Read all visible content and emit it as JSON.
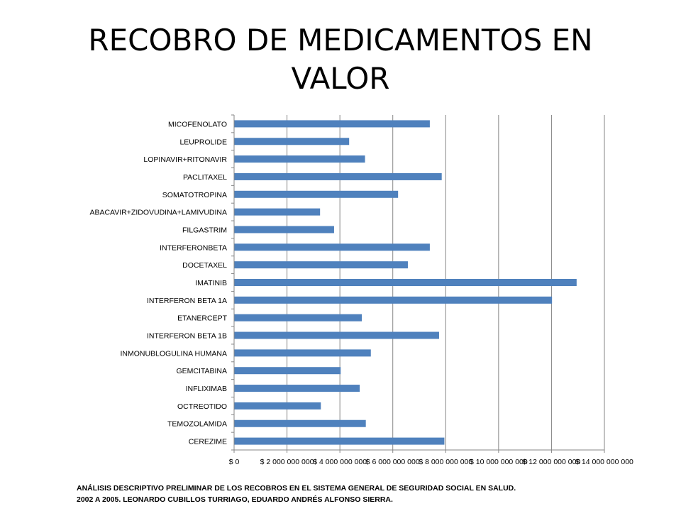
{
  "title": "RECOBRO DE MEDICAMENTOS EN VALOR",
  "footnote": {
    "line1": "ANÁLISIS DESCRIPTIVO PRELIMINAR DE LOS RECOBROS EN EL SISTEMA GENERAL DE SEGURIDAD SOCIAL EN SALUD.",
    "line2": "2002 A 2005. LEONARDO CUBILLOS TURRIAGO, EDUARDO ANDRÉS ALFONSO SIERRA."
  },
  "colors": {
    "bar": "#4f81bd",
    "grid": "#868686",
    "axis": "#868686"
  },
  "chart_data": {
    "type": "bar",
    "orientation": "horizontal",
    "title": "RECOBRO DE MEDICAMENTOS EN VALOR",
    "xlabel": "",
    "ylabel": "",
    "xlim": [
      0,
      14000000000
    ],
    "grid": true,
    "legend": "none",
    "xticks": [
      0,
      2000000000,
      4000000000,
      6000000000,
      8000000000,
      10000000000,
      12000000000,
      14000000000
    ],
    "xtick_labels": [
      "$ 0",
      "$ 2 000 000 000",
      "$ 4 000 000 000",
      "$ 6 000 000 000",
      "$ 8 000 000 000",
      "$ 10 000 000 000",
      "$ 12 000 000 000",
      "$ 14 000 000 000"
    ],
    "categories": [
      "MICOFENOLATO",
      "LEUPROLIDE",
      "LOPINAVIR+RITONAVIR",
      "PACLITAXEL",
      "SOMATOTROPINA",
      "ABACAVIR+ZIDOVUDINA+LAMIVUDINA",
      "FILGASTRIM",
      "INTERFERONBETA",
      "DOCETAXEL",
      "IMATINIB",
      "INTERFERON BETA 1A",
      "ETANERCEPT",
      "INTERFERON BETA 1B",
      "INMONUBLOGULINA HUMANA",
      "GEMCITABINA",
      "INFLIXIMAB",
      "OCTREOTIDO",
      "TEMOZOLAMIDA",
      "CEREZIME"
    ],
    "values": [
      7400000000,
      4350000000,
      4950000000,
      7850000000,
      6200000000,
      3250000000,
      3780000000,
      7400000000,
      6570000000,
      12950000000,
      12020000000,
      4830000000,
      7750000000,
      5170000000,
      4030000000,
      4750000000,
      3280000000,
      4980000000,
      7950000000
    ]
  }
}
